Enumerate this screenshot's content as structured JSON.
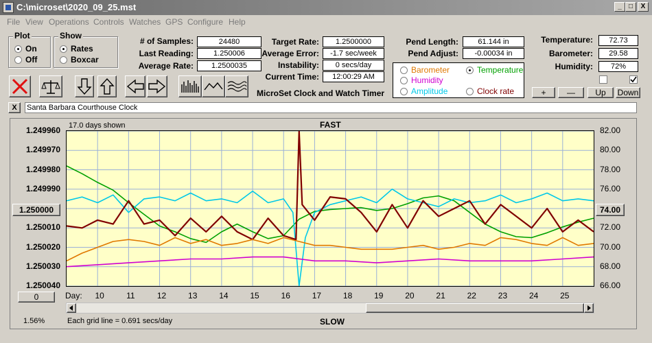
{
  "window": {
    "title": "C:\\microset\\2020_09_25.mst",
    "minimize": "_",
    "maximize": "□",
    "close": "X"
  },
  "menu": [
    "File",
    "View",
    "Operations",
    "Controls",
    "Watches",
    "GPS",
    "Configure",
    "Help"
  ],
  "plot_group": {
    "title": "Plot",
    "on": "On",
    "off": "Off",
    "selected": "On"
  },
  "show_group": {
    "title": "Show",
    "rates": "Rates",
    "boxcar": "Boxcar",
    "selected": "Rates"
  },
  "stats": {
    "samples_label": "# of Samples:",
    "samples": "24480",
    "last_reading_label": "Last Reading:",
    "last_reading": "1.250006",
    "average_rate_label": "Average Rate:",
    "average_rate": "1.2500035",
    "target_rate_label": "Target Rate:",
    "target_rate": "1.2500000",
    "average_error_label": "Average Error:",
    "average_error": "-1.7 sec/week",
    "instability_label": "Instability:",
    "instability": "0 secs/day",
    "current_time_label": "Current Time:",
    "current_time": "12:00:29 AM",
    "pend_length_label": "Pend Length:",
    "pend_length": "61.144 in",
    "pend_adjust_label": "Pend Adjust:",
    "pend_adjust": "-0.00034 in",
    "temperature_label": "Temperature:",
    "temperature": "72.73",
    "barometer_label": "Barometer:",
    "barometer": "29.58",
    "humidity_label": "Humidity:",
    "humidity": "72%"
  },
  "app_caption": "MicroSet Clock and Watch Timer",
  "overlay_options": {
    "barometer": "Barometer",
    "temperature": "Temperature",
    "humidity": "Humidity",
    "amplitude": "Amplitude",
    "clock_rate": "Clock rate",
    "selected": "Temperature",
    "colors": {
      "barometer": "#e07800",
      "temperature": "#00a000",
      "humidity": "#d000d0",
      "amplitude": "#00c8e8",
      "clock_rate": "#800000"
    }
  },
  "sensor_buttons": {
    "plus": "+",
    "minus": "—",
    "up": "Up",
    "down": "Down"
  },
  "toolbar_icons": [
    "cancel-icon",
    "balance-scale-icon",
    "arrow-down-icon",
    "arrow-up-icon",
    "arrow-left-icon",
    "arrow-right-icon",
    "bar-graph-icon",
    "wave-icon",
    "multi-wave-icon"
  ],
  "clock_name": {
    "close": "X",
    "value": "Santa Barbara Courthouse Clock"
  },
  "chart_controls": {
    "center_value": "1.250000",
    "right_value": "74.00",
    "zero_button": "0",
    "percent": "1.56%"
  },
  "chart_data": {
    "type": "line",
    "title": "FAST",
    "bottom_label": "SLOW",
    "days_shown": "17.0 days shown",
    "grid_note": "Each grid line = 0.691 secs/day",
    "xlabel": "Day:",
    "x_ticks": [
      10,
      11,
      12,
      13,
      14,
      15,
      16,
      17,
      18,
      19,
      20,
      21,
      22,
      23,
      24,
      25
    ],
    "xlim": [
      9.0,
      26.0
    ],
    "left_ticks": [
      "1.249960",
      "1.249970",
      "1.249980",
      "1.249990",
      "1.250000",
      "1.250010",
      "1.250020",
      "1.250030",
      "1.250040"
    ],
    "left_ylim": [
      1.24996,
      1.25004
    ],
    "left_axis_inverted": true,
    "right_ticks": [
      "82.00",
      "80.00",
      "78.00",
      "76.00",
      "74.00",
      "72.00",
      "70.00",
      "68.00",
      "66.00"
    ],
    "right_ylim": [
      66,
      82
    ],
    "grid": true,
    "series": [
      {
        "name": "Temperature",
        "color": "#00a000",
        "axis": "right",
        "x": [
          9.0,
          9.5,
          10.0,
          10.5,
          11.0,
          11.5,
          12.0,
          12.5,
          13.0,
          13.5,
          14.0,
          14.5,
          15.0,
          15.5,
          16.0,
          16.5,
          17.0,
          17.5,
          18.0,
          18.5,
          19.0,
          19.5,
          20.0,
          20.5,
          21.0,
          21.5,
          22.0,
          22.5,
          23.0,
          23.5,
          24.0,
          24.5,
          25.0,
          25.5,
          26.0
        ],
        "y": [
          78.4,
          77.6,
          76.7,
          75.9,
          74.6,
          73.4,
          72.2,
          71.6,
          70.9,
          70.5,
          71.6,
          72.4,
          71.6,
          70.9,
          71.2,
          72.9,
          73.7,
          73.9,
          74.0,
          74.1,
          73.8,
          74.0,
          74.5,
          75.1,
          75.3,
          74.8,
          73.6,
          72.4,
          71.6,
          71.1,
          71.0,
          71.5,
          72.1,
          72.6,
          73.0
        ]
      },
      {
        "name": "Amplitude",
        "color": "#00c8e8",
        "axis": "left",
        "x": [
          9.0,
          9.5,
          10.0,
          10.5,
          11.0,
          11.5,
          12.0,
          12.5,
          13.0,
          13.5,
          14.0,
          14.5,
          15.0,
          15.5,
          16.0,
          16.3,
          16.5,
          16.7,
          17.0,
          17.5,
          18.0,
          18.5,
          19.0,
          19.5,
          20.0,
          20.5,
          21.0,
          21.5,
          22.0,
          22.5,
          23.0,
          23.5,
          24.0,
          24.5,
          25.0,
          25.5,
          26.0
        ],
        "y": [
          1.249996,
          1.249994,
          1.249997,
          1.249993,
          1.250002,
          1.249995,
          1.249994,
          1.249996,
          1.249992,
          1.249996,
          1.249995,
          1.249997,
          1.249991,
          1.249997,
          1.249995,
          1.250002,
          1.25004,
          1.250015,
          1.250002,
          1.249998,
          1.249996,
          1.249994,
          1.249997,
          1.24999,
          1.249995,
          1.249997,
          1.249999,
          1.249995,
          1.249997,
          1.249996,
          1.249993,
          1.249997,
          1.249995,
          1.249992,
          1.249996,
          1.249995,
          1.249996
        ]
      },
      {
        "name": "Clock rate",
        "color": "#800000",
        "axis": "left",
        "x": [
          9.0,
          9.5,
          10.0,
          10.5,
          11.0,
          11.5,
          12.0,
          12.5,
          13.0,
          13.5,
          14.0,
          14.5,
          15.0,
          15.5,
          16.0,
          16.4,
          16.5,
          16.6,
          17.0,
          17.5,
          18.0,
          18.5,
          19.0,
          19.5,
          20.0,
          20.5,
          21.0,
          21.5,
          22.0,
          22.5,
          23.0,
          23.5,
          24.0,
          24.5,
          25.0,
          25.5,
          26.0
        ],
        "y": [
          1.250009,
          1.25001,
          1.250006,
          1.250008,
          1.249996,
          1.250008,
          1.250006,
          1.250014,
          1.250005,
          1.250012,
          1.250004,
          1.250012,
          1.250016,
          1.250005,
          1.250014,
          1.250016,
          1.24996,
          1.249998,
          1.250006,
          1.249994,
          1.249995,
          1.250002,
          1.250012,
          1.249998,
          1.25001,
          1.249996,
          1.250004,
          1.25,
          1.249996,
          1.250008,
          1.249998,
          1.250004,
          1.25001,
          1.25,
          1.250012,
          1.250006,
          1.250012
        ]
      },
      {
        "name": "Barometer",
        "color": "#e07800",
        "axis": "left",
        "x": [
          9.0,
          9.5,
          10.0,
          10.5,
          11.0,
          11.5,
          12.0,
          12.5,
          13.0,
          13.5,
          14.0,
          14.5,
          15.0,
          15.5,
          16.0,
          16.5,
          17.0,
          17.5,
          18.0,
          18.5,
          19.0,
          19.5,
          20.0,
          20.5,
          21.0,
          21.5,
          22.0,
          22.5,
          23.0,
          23.5,
          24.0,
          24.5,
          25.0,
          25.5,
          26.0
        ],
        "y": [
          1.250027,
          1.250023,
          1.25002,
          1.250017,
          1.250016,
          1.250017,
          1.250019,
          1.250015,
          1.250018,
          1.250016,
          1.250019,
          1.250018,
          1.250016,
          1.250018,
          1.250015,
          1.250017,
          1.250019,
          1.250019,
          1.25002,
          1.250021,
          1.250021,
          1.250021,
          1.25002,
          1.250019,
          1.250021,
          1.25002,
          1.250018,
          1.250019,
          1.250015,
          1.250016,
          1.250018,
          1.250019,
          1.250015,
          1.250019,
          1.250018
        ]
      },
      {
        "name": "Humidity",
        "color": "#d000d0",
        "axis": "left",
        "x": [
          9.0,
          10.0,
          11.0,
          12.0,
          13.0,
          14.0,
          15.0,
          16.0,
          17.0,
          18.0,
          19.0,
          20.0,
          21.0,
          22.0,
          23.0,
          24.0,
          25.0,
          26.0
        ],
        "y": [
          1.25003,
          1.250029,
          1.250028,
          1.250027,
          1.250026,
          1.250026,
          1.250025,
          1.250025,
          1.250027,
          1.250027,
          1.250028,
          1.250027,
          1.250026,
          1.250027,
          1.250027,
          1.250027,
          1.250026,
          1.250025
        ]
      }
    ]
  }
}
